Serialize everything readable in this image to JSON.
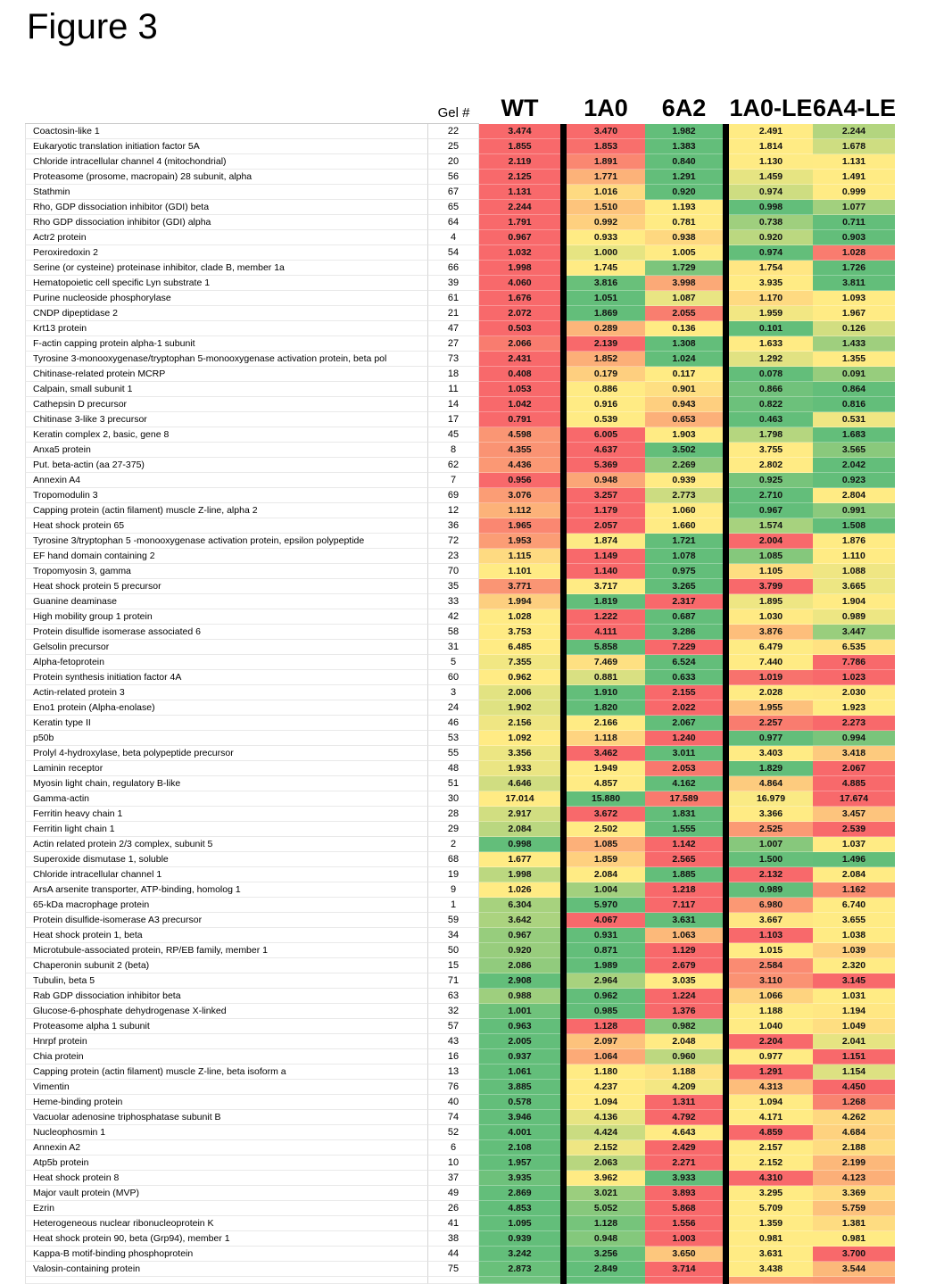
{
  "title": "Figure 3",
  "chart_data": {
    "type": "heatmap",
    "title": "Figure 3",
    "gel_label": "Gel #",
    "columns": [
      "WT",
      "1A0",
      "6A2",
      "1A0-LE",
      "6A4-LE"
    ],
    "color_scale": {
      "low_min": "#63BE7A",
      "mid_median": "#FFEB84",
      "high_max": "#F8696B",
      "divider": "#000000"
    },
    "legend": "per-row 3-color scale: green = row minimum, yellow = row median, red = row maximum",
    "rows": [
      {
        "name": "Coactosin-like 1",
        "gel": 22,
        "values": [
          3.474,
          3.47,
          1.982,
          2.491,
          2.244
        ]
      },
      {
        "name": "Eukaryotic translation initiation factor 5A",
        "gel": 25,
        "values": [
          1.855,
          1.853,
          1.383,
          1.814,
          1.678
        ]
      },
      {
        "name": "Chloride intracellular channel 4 (mitochondrial)",
        "gel": 20,
        "values": [
          2.119,
          1.891,
          0.84,
          1.13,
          1.131
        ]
      },
      {
        "name": "Proteasome (prosome, macropain) 28 subunit, alpha",
        "gel": 56,
        "values": [
          2.125,
          1.771,
          1.291,
          1.459,
          1.491
        ]
      },
      {
        "name": "Stathmin",
        "gel": 67,
        "values": [
          1.131,
          1.016,
          0.92,
          0.974,
          0.999
        ]
      },
      {
        "name": "Rho, GDP dissociation inhibitor (GDI) beta",
        "gel": 65,
        "values": [
          2.244,
          1.51,
          1.193,
          0.998,
          1.077
        ]
      },
      {
        "name": "Rho GDP dissociation inhibitor (GDI) alpha",
        "gel": 64,
        "values": [
          1.791,
          0.992,
          0.781,
          0.738,
          0.711
        ]
      },
      {
        "name": "Actr2 protein",
        "gel": 4,
        "values": [
          0.967,
          0.933,
          0.938,
          0.92,
          0.903
        ]
      },
      {
        "name": "Peroxiredoxin 2",
        "gel": 54,
        "values": [
          1.032,
          1.0,
          1.005,
          0.974,
          1.028
        ]
      },
      {
        "name": "Serine (or cysteine) proteinase inhibitor, clade B, member 1a",
        "gel": 66,
        "values": [
          1.998,
          1.745,
          1.729,
          1.754,
          1.726
        ]
      },
      {
        "name": "Hematopoietic cell specific Lyn substrate 1",
        "gel": 39,
        "values": [
          4.06,
          3.816,
          3.998,
          3.935,
          3.811
        ]
      },
      {
        "name": "Purine nucleoside phosphorylase",
        "gel": 61,
        "values": [
          1.676,
          1.051,
          1.087,
          1.17,
          1.093
        ]
      },
      {
        "name": "CNDP dipeptidase 2",
        "gel": 21,
        "values": [
          2.072,
          1.869,
          2.055,
          1.959,
          1.967
        ]
      },
      {
        "name": "Krt13 protein",
        "gel": 47,
        "values": [
          0.503,
          0.289,
          0.136,
          0.101,
          0.126
        ]
      },
      {
        "name": "F-actin capping protein alpha-1 subunit",
        "gel": 27,
        "values": [
          2.066,
          2.139,
          1.308,
          1.633,
          1.433
        ]
      },
      {
        "name": "Tyrosine 3-monooxygenase/tryptophan 5-monooxygenase activation protein, beta pol",
        "gel": 73,
        "values": [
          2.431,
          1.852,
          1.024,
          1.292,
          1.355
        ]
      },
      {
        "name": "Chitinase-related protein MCRP",
        "gel": 18,
        "values": [
          0.408,
          0.179,
          0.117,
          0.078,
          0.091
        ]
      },
      {
        "name": "Calpain, small subunit 1",
        "gel": 11,
        "values": [
          1.053,
          0.886,
          0.901,
          0.866,
          0.864
        ]
      },
      {
        "name": "Cathepsin D precursor",
        "gel": 14,
        "values": [
          1.042,
          0.916,
          0.943,
          0.822,
          0.816
        ]
      },
      {
        "name": "Chitinase 3-like 3 precursor",
        "gel": 17,
        "values": [
          0.791,
          0.539,
          0.653,
          0.463,
          0.531
        ]
      },
      {
        "name": "Keratin complex 2, basic, gene 8",
        "gel": 45,
        "values": [
          4.598,
          6.005,
          1.903,
          1.798,
          1.683
        ]
      },
      {
        "name": "Anxa5 protein",
        "gel": 8,
        "values": [
          4.355,
          4.637,
          3.502,
          3.755,
          3.565
        ]
      },
      {
        "name": "Put. beta-actin (aa 27-375)",
        "gel": 62,
        "values": [
          4.436,
          5.369,
          2.269,
          2.802,
          2.042
        ]
      },
      {
        "name": "Annexin A4",
        "gel": 7,
        "values": [
          0.956,
          0.948,
          0.939,
          0.925,
          0.923
        ]
      },
      {
        "name": "Tropomodulin 3",
        "gel": 69,
        "values": [
          3.076,
          3.257,
          2.773,
          2.71,
          2.804
        ]
      },
      {
        "name": "Capping protein (actin filament) muscle Z-line, alpha 2",
        "gel": 12,
        "values": [
          1.112,
          1.179,
          1.06,
          0.967,
          0.991
        ]
      },
      {
        "name": "Heat shock protein 65",
        "gel": 36,
        "values": [
          1.965,
          2.057,
          1.66,
          1.574,
          1.508
        ]
      },
      {
        "name": "Tyrosine 3/tryptophan 5 -monooxygenase activation protein, epsilon polypeptide",
        "gel": 72,
        "values": [
          1.953,
          1.874,
          1.721,
          2.004,
          1.876
        ]
      },
      {
        "name": "EF hand domain containing 2",
        "gel": 23,
        "values": [
          1.115,
          1.149,
          1.078,
          1.085,
          1.11
        ]
      },
      {
        "name": "Tropomyosin 3, gamma",
        "gel": 70,
        "values": [
          1.101,
          1.14,
          0.975,
          1.105,
          1.088
        ]
      },
      {
        "name": "Heat shock protein 5 precursor",
        "gel": 35,
        "values": [
          3.771,
          3.717,
          3.265,
          3.799,
          3.665
        ]
      },
      {
        "name": "Guanine deaminase",
        "gel": 33,
        "values": [
          1.994,
          1.819,
          2.317,
          1.895,
          1.904
        ]
      },
      {
        "name": "High mobility group 1 protein",
        "gel": 42,
        "values": [
          1.028,
          1.222,
          0.687,
          1.03,
          0.989
        ]
      },
      {
        "name": "Protein disulfide isomerase associated 6",
        "gel": 58,
        "values": [
          3.753,
          4.111,
          3.286,
          3.876,
          3.447
        ]
      },
      {
        "name": "Gelsolin precursor",
        "gel": 31,
        "values": [
          6.485,
          5.858,
          7.229,
          6.479,
          6.535
        ]
      },
      {
        "name": "Alpha-fetoprotein",
        "gel": 5,
        "values": [
          7.355,
          7.469,
          6.524,
          7.44,
          7.786
        ]
      },
      {
        "name": "Protein synthesis initiation factor 4A",
        "gel": 60,
        "values": [
          0.962,
          0.881,
          0.633,
          1.019,
          1.023
        ]
      },
      {
        "name": "Actin-related protein 3",
        "gel": 3,
        "values": [
          2.006,
          1.91,
          2.155,
          2.028,
          2.03
        ]
      },
      {
        "name": "Eno1 protein (Alpha-enolase)",
        "gel": 24,
        "values": [
          1.902,
          1.82,
          2.022,
          1.955,
          1.923
        ]
      },
      {
        "name": "Keratin type II",
        "gel": 46,
        "values": [
          2.156,
          2.166,
          2.067,
          2.257,
          2.273
        ]
      },
      {
        "name": "p50b",
        "gel": 53,
        "values": [
          1.092,
          1.118,
          1.24,
          0.977,
          0.994
        ]
      },
      {
        "name": "Prolyl 4-hydroxylase, beta polypeptide precursor",
        "gel": 55,
        "values": [
          3.356,
          3.462,
          3.011,
          3.403,
          3.418
        ]
      },
      {
        "name": "Laminin receptor",
        "gel": 48,
        "values": [
          1.933,
          1.949,
          2.053,
          1.829,
          2.067
        ]
      },
      {
        "name": "Myosin light chain, regulatory B-like",
        "gel": 51,
        "values": [
          4.646,
          4.857,
          4.162,
          4.864,
          4.885
        ]
      },
      {
        "name": "Gamma-actin",
        "gel": 30,
        "values": [
          17.014,
          15.88,
          17.589,
          16.979,
          17.674
        ]
      },
      {
        "name": "Ferritin heavy chain 1",
        "gel": 28,
        "values": [
          2.917,
          3.672,
          1.831,
          3.366,
          3.457
        ]
      },
      {
        "name": "Ferritin light chain 1",
        "gel": 29,
        "values": [
          2.084,
          2.502,
          1.555,
          2.525,
          2.539
        ]
      },
      {
        "name": "Actin related protein 2/3 complex, subunit 5",
        "gel": 2,
        "values": [
          0.998,
          1.085,
          1.142,
          1.007,
          1.037
        ]
      },
      {
        "name": "Superoxide dismutase 1, soluble",
        "gel": 68,
        "values": [
          1.677,
          1.859,
          2.565,
          1.5,
          1.496
        ]
      },
      {
        "name": "Chloride intracellular channel 1",
        "gel": 19,
        "values": [
          1.998,
          2.084,
          1.885,
          2.132,
          2.084
        ]
      },
      {
        "name": "ArsA arsenite transporter, ATP-binding, homolog 1",
        "gel": 9,
        "values": [
          1.026,
          1.004,
          1.218,
          0.989,
          1.162
        ]
      },
      {
        "name": "65-kDa macrophage protein",
        "gel": 1,
        "values": [
          6.304,
          5.97,
          7.117,
          6.98,
          6.74
        ]
      },
      {
        "name": "Protein disulfide-isomerase A3 precursor",
        "gel": 59,
        "values": [
          3.642,
          4.067,
          3.631,
          3.667,
          3.655
        ]
      },
      {
        "name": "Heat shock protein 1, beta",
        "gel": 34,
        "values": [
          0.967,
          0.931,
          1.063,
          1.103,
          1.038
        ]
      },
      {
        "name": "Microtubule-associated protein, RP/EB family, member 1",
        "gel": 50,
        "values": [
          0.92,
          0.871,
          1.129,
          1.015,
          1.039
        ]
      },
      {
        "name": "Chaperonin subunit 2 (beta)",
        "gel": 15,
        "values": [
          2.086,
          1.989,
          2.679,
          2.584,
          2.32
        ]
      },
      {
        "name": "Tubulin, beta 5",
        "gel": 71,
        "values": [
          2.908,
          2.964,
          3.035,
          3.11,
          3.145
        ]
      },
      {
        "name": "Rab GDP dissociation inhibitor beta",
        "gel": 63,
        "values": [
          0.988,
          0.962,
          1.224,
          1.066,
          1.031
        ]
      },
      {
        "name": "Glucose-6-phosphate dehydrogenase X-linked",
        "gel": 32,
        "values": [
          1.001,
          0.985,
          1.376,
          1.188,
          1.194
        ]
      },
      {
        "name": "Proteasome alpha 1 subunit",
        "gel": 57,
        "values": [
          0.963,
          1.128,
          0.982,
          1.04,
          1.049
        ]
      },
      {
        "name": "Hnrpf protein",
        "gel": 43,
        "values": [
          2.005,
          2.097,
          2.048,
          2.204,
          2.041
        ]
      },
      {
        "name": "Chia protein",
        "gel": 16,
        "values": [
          0.937,
          1.064,
          0.96,
          0.977,
          1.151
        ]
      },
      {
        "name": "Capping protein (actin filament) muscle Z-line, beta isoform a",
        "gel": 13,
        "values": [
          1.061,
          1.18,
          1.188,
          1.291,
          1.154
        ]
      },
      {
        "name": "Vimentin",
        "gel": 76,
        "values": [
          3.885,
          4.237,
          4.209,
          4.313,
          4.45
        ]
      },
      {
        "name": "Heme-binding protein",
        "gel": 40,
        "values": [
          0.578,
          1.094,
          1.311,
          1.094,
          1.268
        ]
      },
      {
        "name": "Vacuolar adenosine triphosphatase subunit B",
        "gel": 74,
        "values": [
          3.946,
          4.136,
          4.792,
          4.171,
          4.262
        ]
      },
      {
        "name": "Nucleophosmin 1",
        "gel": 52,
        "values": [
          4.001,
          4.424,
          4.643,
          4.859,
          4.684
        ]
      },
      {
        "name": "Annexin A2",
        "gel": 6,
        "values": [
          2.108,
          2.152,
          2.429,
          2.157,
          2.188
        ]
      },
      {
        "name": "Atp5b protein",
        "gel": 10,
        "values": [
          1.957,
          2.063,
          2.271,
          2.152,
          2.199
        ]
      },
      {
        "name": "Heat shock protein 8",
        "gel": 37,
        "values": [
          3.935,
          3.962,
          3.933,
          4.31,
          4.123
        ]
      },
      {
        "name": "Major vault protein  (MVP)",
        "gel": 49,
        "values": [
          2.869,
          3.021,
          3.893,
          3.295,
          3.369
        ]
      },
      {
        "name": "Ezrin",
        "gel": 26,
        "values": [
          4.853,
          5.052,
          5.868,
          5.709,
          5.759
        ]
      },
      {
        "name": "Heterogeneous nuclear ribonucleoprotein K",
        "gel": 41,
        "values": [
          1.095,
          1.128,
          1.556,
          1.359,
          1.381
        ]
      },
      {
        "name": "Heat shock protein 90, beta (Grp94), member 1",
        "gel": 38,
        "values": [
          0.939,
          0.948,
          1.003,
          0.981,
          0.981
        ]
      },
      {
        "name": "Kappa-B motif-binding phosphoprotein",
        "gel": 44,
        "values": [
          3.242,
          3.256,
          3.65,
          3.631,
          3.7
        ]
      },
      {
        "name": "Valosin-containing protein",
        "gel": 75,
        "values": [
          2.873,
          2.849,
          3.714,
          3.438,
          3.544
        ]
      }
    ],
    "partial_bottom_row_colors": [
      "#70C27E",
      "#63BE7A",
      "#F8696B",
      "#FB9D74",
      "#FA9A73"
    ]
  }
}
